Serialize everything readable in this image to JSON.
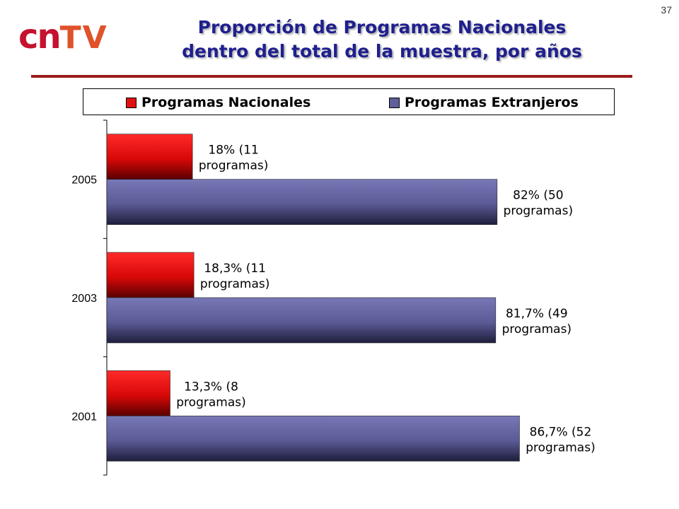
{
  "slide_number": "37",
  "logo": {
    "cn": "cn",
    "tv": "TV"
  },
  "title_line1": "Proporción de Programas Nacionales",
  "title_line2": "dentro del total de la muestra, por años",
  "colors": {
    "nacionales": "#e01010",
    "extranjeros": "#5f5f9a",
    "title": "#1f1f8f",
    "rule": "#9b1c1c"
  },
  "chart_data": {
    "type": "bar",
    "orientation": "horizontal",
    "categories": [
      "2005",
      "2003",
      "2001"
    ],
    "series": [
      {
        "name": "Programas Nacionales",
        "values": [
          18,
          18.3,
          13.3
        ],
        "labels": [
          [
            "18% (11",
            "programas)"
          ],
          [
            "18,3% (11",
            "programas)"
          ],
          [
            "13,3% (8",
            "programas)"
          ]
        ]
      },
      {
        "name": "Programas Extranjeros",
        "values": [
          82,
          81.7,
          86.7
        ],
        "labels": [
          [
            "82% (50",
            "programas)"
          ],
          [
            "81,7% (49",
            "programas)"
          ],
          [
            "86,7% (52",
            "programas)"
          ]
        ]
      }
    ],
    "xlim": [
      0,
      100
    ],
    "legend": "top",
    "grid": false
  }
}
